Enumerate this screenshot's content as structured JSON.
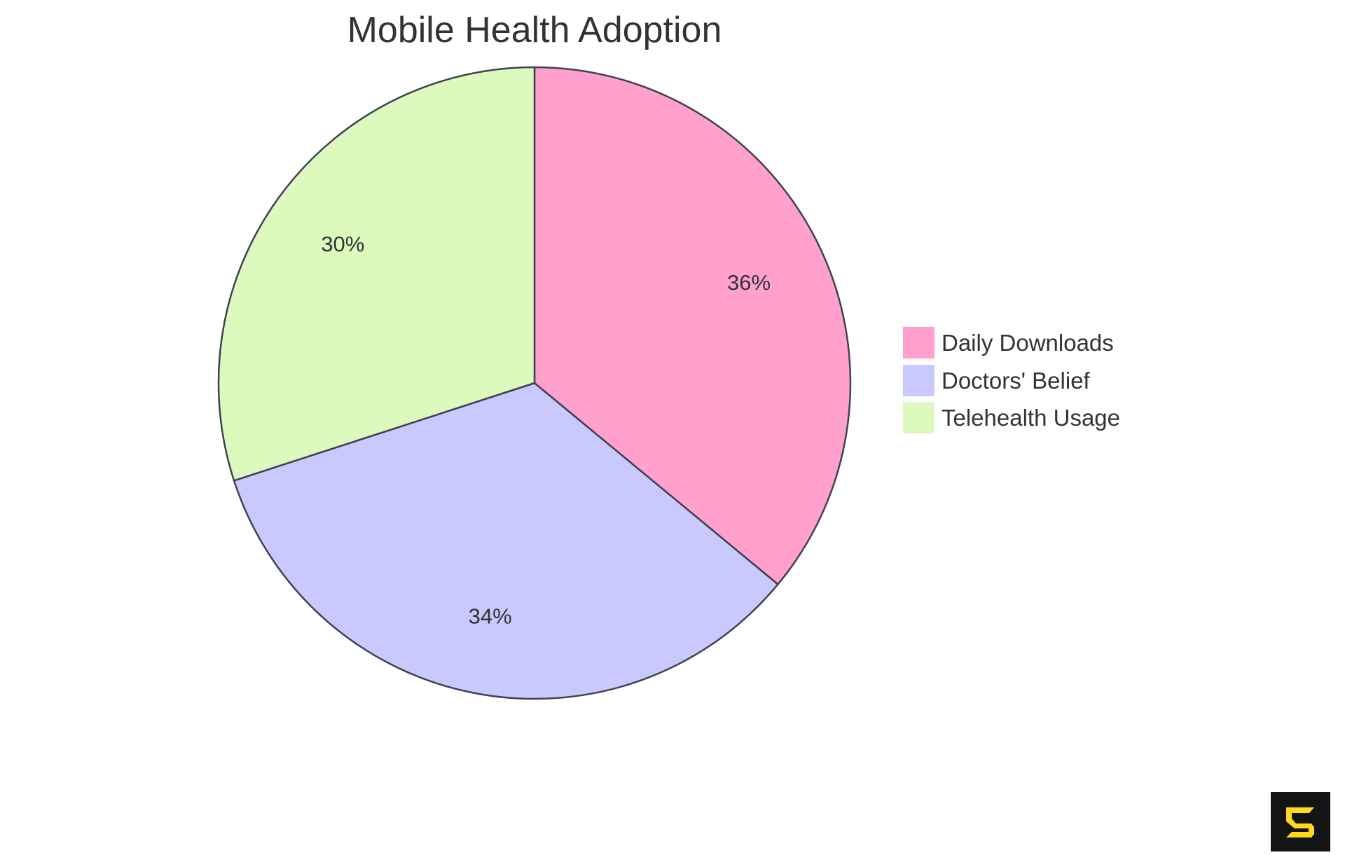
{
  "chart_data": {
    "type": "pie",
    "title": "Mobile Health Adoption",
    "categories": [
      "Daily Downloads",
      "Doctors' Belief",
      "Telehealth Usage"
    ],
    "values": [
      36,
      34,
      30
    ],
    "labels": [
      "36%",
      "34%",
      "30%"
    ],
    "colors": [
      "#FFA1CC",
      "#C9C9FD",
      "#DCFABD"
    ],
    "stroke_color": "#3F4155",
    "legend_position": "right"
  },
  "legend": {
    "items": [
      {
        "label": "Daily Downloads",
        "color": "#FFA1CC"
      },
      {
        "label": "Doctors' Belief",
        "color": "#C9C9FD"
      },
      {
        "label": "Telehealth Usage",
        "color": "#DCFABD"
      }
    ]
  },
  "watermark": {
    "icon": "brand-s-logo-icon",
    "bg": "#141414",
    "fg": "#FFDA1F"
  }
}
